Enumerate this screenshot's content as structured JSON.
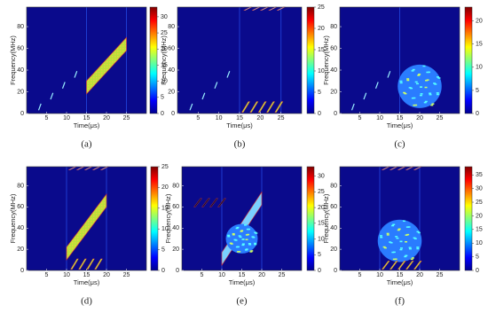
{
  "chart_data": [
    {
      "type": "spectrogram",
      "caption": "(a)",
      "xlabel": "Time(μs)",
      "ylabel": "Frequency(MHz)",
      "xlim": [
        0,
        30
      ],
      "xticks": [
        5,
        10,
        15,
        20,
        25
      ],
      "ylim": [
        0,
        98
      ],
      "yticks": [
        0,
        20,
        40,
        60,
        80
      ],
      "clim": [
        0,
        33
      ],
      "cticks": [
        0,
        5,
        10,
        15,
        20,
        25,
        30
      ]
    },
    {
      "type": "spectrogram",
      "caption": "(b)",
      "xlabel": "Time(μs)",
      "ylabel": "Frequency(MHz)",
      "xlim": [
        0,
        30
      ],
      "xticks": [
        5,
        10,
        15,
        20,
        25
      ],
      "ylim": [
        0,
        98
      ],
      "yticks": [
        0,
        20,
        40,
        60,
        80
      ],
      "clim": [
        0,
        25
      ],
      "cticks": [
        0,
        5,
        10,
        15,
        20,
        25
      ]
    },
    {
      "type": "spectrogram",
      "caption": "(c)",
      "xlabel": "Time(μs)",
      "ylabel": "Frequency(MHz)",
      "xlim": [
        0,
        30
      ],
      "xticks": [
        5,
        10,
        15,
        20,
        25
      ],
      "ylim": [
        0,
        98
      ],
      "yticks": [
        0,
        20,
        40,
        60,
        80
      ],
      "clim": [
        0,
        23
      ],
      "cticks": [
        0,
        5,
        10,
        15,
        20
      ]
    },
    {
      "type": "spectrogram",
      "caption": "(d)",
      "xlabel": "Time(μs)",
      "ylabel": "Frequency(MHz)",
      "xlim": [
        0,
        30
      ],
      "xticks": [
        5,
        10,
        15,
        20,
        25
      ],
      "ylim": [
        0,
        98
      ],
      "yticks": [
        0,
        20,
        40,
        60,
        80
      ],
      "clim": [
        0,
        25
      ],
      "cticks": [
        0,
        5,
        10,
        15,
        20,
        25
      ]
    },
    {
      "type": "spectrogram",
      "caption": "(e)",
      "xlabel": "Time(μs)",
      "ylabel": "Frequency(MHz)",
      "xlim": [
        0,
        30
      ],
      "xticks": [
        5,
        10,
        15,
        20,
        25
      ],
      "ylim": [
        0,
        98
      ],
      "yticks": [
        0,
        20,
        40,
        60,
        80
      ],
      "clim": [
        0,
        33
      ],
      "cticks": [
        0,
        5,
        10,
        15,
        20,
        25,
        30
      ]
    },
    {
      "type": "spectrogram",
      "caption": "(f)",
      "xlabel": "Time(μs)",
      "ylabel": "Frequency(MHz)",
      "xlim": [
        0,
        30
      ],
      "xticks": [
        5,
        10,
        15,
        20,
        25
      ],
      "ylim": [
        0,
        98
      ],
      "yticks": [
        0,
        20,
        40,
        60,
        80
      ],
      "clim": [
        0,
        38
      ],
      "cticks": [
        0,
        5,
        10,
        15,
        20,
        25,
        30,
        35
      ]
    }
  ]
}
